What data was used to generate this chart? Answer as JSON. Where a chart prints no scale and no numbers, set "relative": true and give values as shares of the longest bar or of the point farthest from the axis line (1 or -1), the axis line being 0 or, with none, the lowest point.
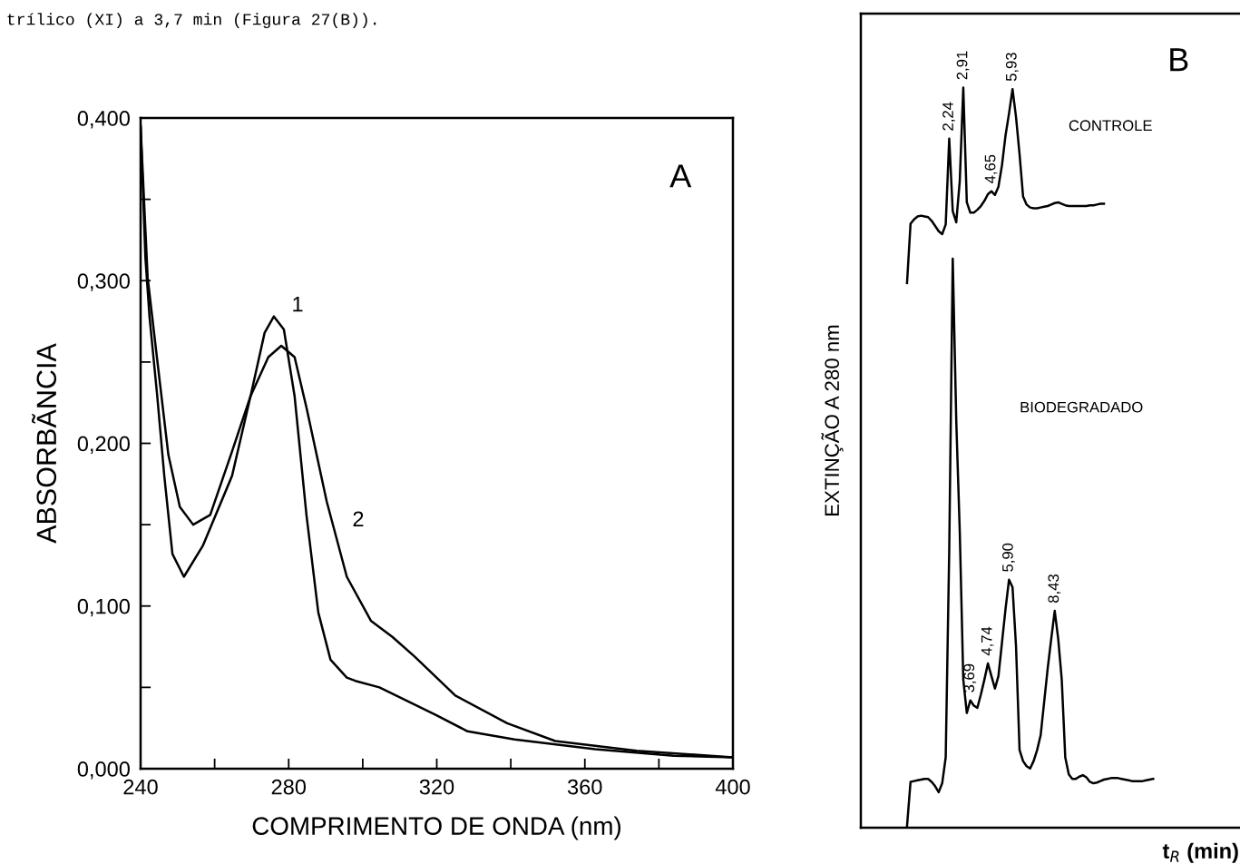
{
  "chart_data": [
    {
      "type": "line",
      "title": "A",
      "xlabel": "COMPRIMENTO DE ONDA (nm)",
      "ylabel": "ABSORBÃNCIA",
      "xlim": [
        240,
        400
      ],
      "ylim": [
        0,
        0.4
      ],
      "xticks": [
        240,
        {
          "value": 260,
          "label": null
        },
        280,
        {
          "value": 300,
          "label": null
        },
        320,
        {
          "value": 340,
          "label": null
        },
        360,
        {
          "value": 380,
          "label": null
        },
        400
      ],
      "yticks": [
        {
          "value": 0,
          "label": "0,000"
        },
        {
          "value": 0.05,
          "label": null
        },
        {
          "value": 0.1,
          "label": "0,100"
        },
        {
          "value": 0.15,
          "label": null
        },
        {
          "value": 0.2,
          "label": "0,200"
        },
        {
          "value": 0.25,
          "label": null
        },
        {
          "value": 0.3,
          "label": "0,300"
        },
        {
          "value": 0.35,
          "label": null
        },
        {
          "value": 0.4,
          "label": "0,400"
        }
      ],
      "grid": false,
      "legend": false,
      "annotations": [
        "trílico (XI) a 3,7 min (Figura 27(B)).",
        "1",
        "2"
      ],
      "series": [
        {
          "color": "#000000",
          "x": [
            240,
            241.3,
            242.4,
            244.5,
            246.4,
            248.6,
            251.7,
            256.8,
            264.7,
            269.7,
            273.5,
            276,
            278.7,
            281.6,
            284.8,
            288,
            291.3,
            295.7,
            298,
            304.5,
            319.8,
            328.3,
            341,
            362.8,
            384,
            400
          ],
          "values": [
            0.395,
            0.314,
            0.278,
            0.229,
            0.18,
            0.132,
            0.118,
            0.137,
            0.18,
            0.229,
            0.268,
            0.278,
            0.27,
            0.229,
            0.156,
            0.096,
            0.067,
            0.056,
            0.054,
            0.05,
            0.033,
            0.023,
            0.018,
            0.012,
            0.008,
            0.007
          ]
        },
        {
          "color": "#000000",
          "x": [
            240,
            241.9,
            244.4,
            247.5,
            250.6,
            254.2,
            258.8,
            264.7,
            269.7,
            274.5,
            278,
            281.6,
            284.8,
            290.3,
            295.7,
            302.2,
            308,
            314,
            325,
            339,
            352,
            374,
            400
          ],
          "values": [
            0.395,
            0.302,
            0.253,
            0.193,
            0.161,
            0.15,
            0.156,
            0.195,
            0.229,
            0.253,
            0.26,
            0.253,
            0.222,
            0.164,
            0.118,
            0.091,
            0.081,
            0.069,
            0.045,
            0.028,
            0.017,
            0.011,
            0.007
          ]
        }
      ]
    },
    {
      "type": "line",
      "xlabel": "t$_{R}$ (min)",
      "ylabel": "EXTINÇÃO A 280 nm",
      "relative": true,
      "grid": false,
      "legend": false,
      "categories": [
        null,
        null,
        null,
        null,
        null,
        null,
        null,
        null,
        null,
        null,
        null,
        null,
        null,
        null,
        null,
        null,
        null,
        null,
        null,
        null,
        null,
        null,
        null,
        null,
        null,
        null,
        null,
        null,
        null,
        null,
        null,
        null,
        null,
        null,
        null,
        null,
        null,
        null,
        null,
        null,
        null,
        null,
        null,
        null,
        null,
        null,
        null,
        null,
        null,
        null,
        null,
        null,
        null,
        null,
        null,
        null,
        null,
        null,
        null,
        null,
        null,
        null,
        null,
        null,
        null,
        null,
        null,
        null,
        null,
        null,
        null
      ],
      "annotations": [
        "B",
        "CONTROLE",
        "BIODEGRADADO",
        "2,24",
        "2,91",
        "4,65",
        "5,93",
        "3,69",
        "4,74",
        "5,90",
        "8,43"
      ],
      "series": [
        {
          "color": "#000000",
          "values": [
            0.736,
            0.816,
            0.822,
            0.826,
            0.827,
            0.826,
            0.825,
            0.82,
            0.813,
            0.806,
            0.802,
            0.815,
            0.931,
            0.833,
            0.818,
            0.874,
            1.0,
            0.845,
            0.831,
            0.831,
            0.835,
            0.84,
            0.847,
            0.856,
            0.86,
            0.855,
            0.866,
            0.895,
            0.935,
            0.965,
            0.998,
            0.96,
            0.91,
            0.853,
            0.842,
            0.838,
            0.837,
            0.837,
            0.838,
            0.839,
            0.84,
            0.842,
            0.844,
            0.845,
            0.843,
            0.841,
            0.84,
            0.84,
            0.84,
            0.84,
            0.84,
            0.84,
            0.841,
            0.841,
            0.842,
            0.843,
            0.843,
            null,
            null,
            null,
            null,
            null,
            null,
            null,
            null,
            null,
            null,
            null,
            null,
            null,
            null
          ]
        },
        {
          "color": "#000000",
          "values": [
            0.002,
            0.062,
            0.063,
            0.064,
            0.065,
            0.066,
            0.066,
            0.062,
            0.056,
            0.048,
            0.06,
            0.095,
            0.374,
            0.769,
            0.55,
            0.4,
            0.2,
            0.155,
            0.172,
            0.165,
            0.162,
            0.18,
            0.2,
            0.222,
            0.205,
            0.188,
            0.205,
            0.25,
            0.295,
            0.335,
            0.325,
            0.245,
            0.105,
            0.09,
            0.083,
            0.08,
            0.09,
            0.105,
            0.125,
            0.17,
            0.215,
            0.255,
            0.293,
            0.255,
            0.2,
            0.095,
            0.072,
            0.066,
            0.066,
            0.069,
            0.071,
            0.068,
            0.062,
            0.06,
            0.061,
            0.063,
            0.065,
            0.066,
            0.067,
            0.067,
            0.067,
            0.066,
            0.065,
            0.064,
            0.063,
            0.063,
            0.063,
            0.063,
            0.064,
            0.065,
            0.066
          ]
        }
      ]
    }
  ]
}
